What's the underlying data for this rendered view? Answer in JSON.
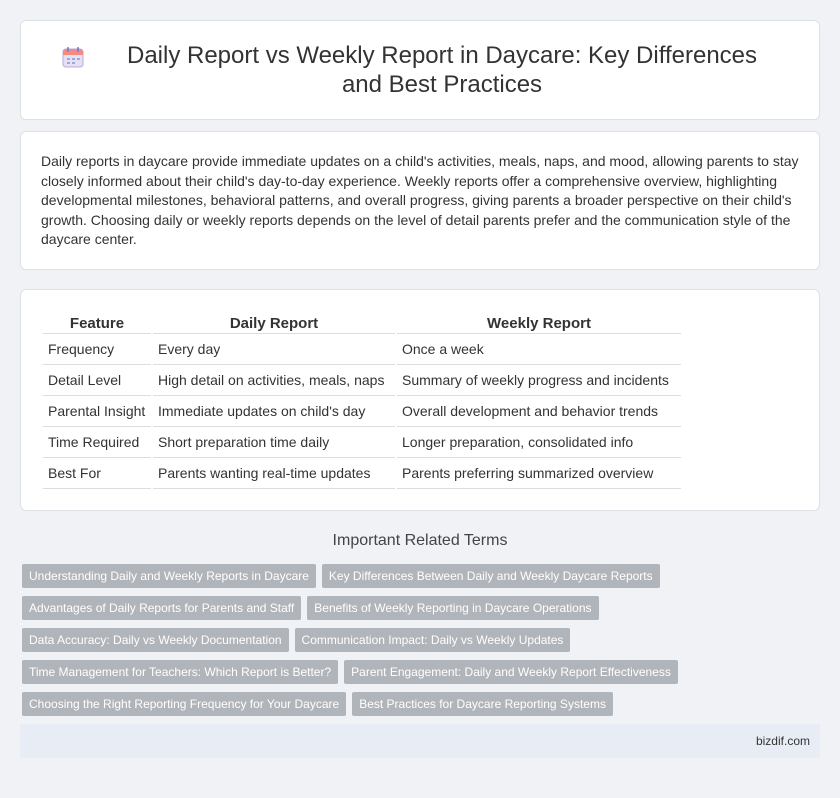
{
  "header": {
    "icon": "calendar-icon",
    "title": "Daily Report vs Weekly Report in Daycare: Key Differences and Best Practices"
  },
  "intro": {
    "text": "Daily reports in daycare provide immediate updates on a child's activities, meals, naps, and mood, allowing parents to stay closely informed about their child's day-to-day experience. Weekly reports offer a comprehensive overview, highlighting developmental milestones, behavioral patterns, and overall progress, giving parents a broader perspective on their child's growth. Choosing daily or weekly reports depends on the level of detail parents prefer and the communication style of the daycare center."
  },
  "table": {
    "headers": [
      "Feature",
      "Daily Report",
      "Weekly Report"
    ],
    "rows": [
      [
        "Frequency",
        "Every day",
        "Once a week"
      ],
      [
        "Detail Level",
        "High detail on activities, meals, naps",
        "Summary of weekly progress and incidents"
      ],
      [
        "Parental Insight",
        "Immediate updates on child's day",
        "Overall development and behavior trends"
      ],
      [
        "Time Required",
        "Short preparation time daily",
        "Longer preparation, consolidated info"
      ],
      [
        "Best For",
        "Parents wanting real-time updates",
        "Parents preferring summarized overview"
      ]
    ]
  },
  "related": {
    "title": "Important Related Terms",
    "rows": [
      [
        "Understanding Daily and Weekly Reports in Daycare",
        "Key Differences Between Daily and Weekly Daycare Reports"
      ],
      [
        "Advantages of Daily Reports for Parents and Staff",
        "Benefits of Weekly Reporting in Daycare Operations"
      ],
      [
        "Data Accuracy: Daily vs Weekly Documentation",
        "Communication Impact: Daily vs Weekly Updates"
      ],
      [
        "Time Management for Teachers: Which Report is Better?",
        "Parent Engagement: Daily and Weekly Report Effectiveness"
      ],
      [
        "Choosing the Right Reporting Frequency for Your Daycare",
        "Best Practices for Daycare Reporting Systems"
      ]
    ]
  },
  "footer": {
    "brand": "bizdif.com"
  }
}
